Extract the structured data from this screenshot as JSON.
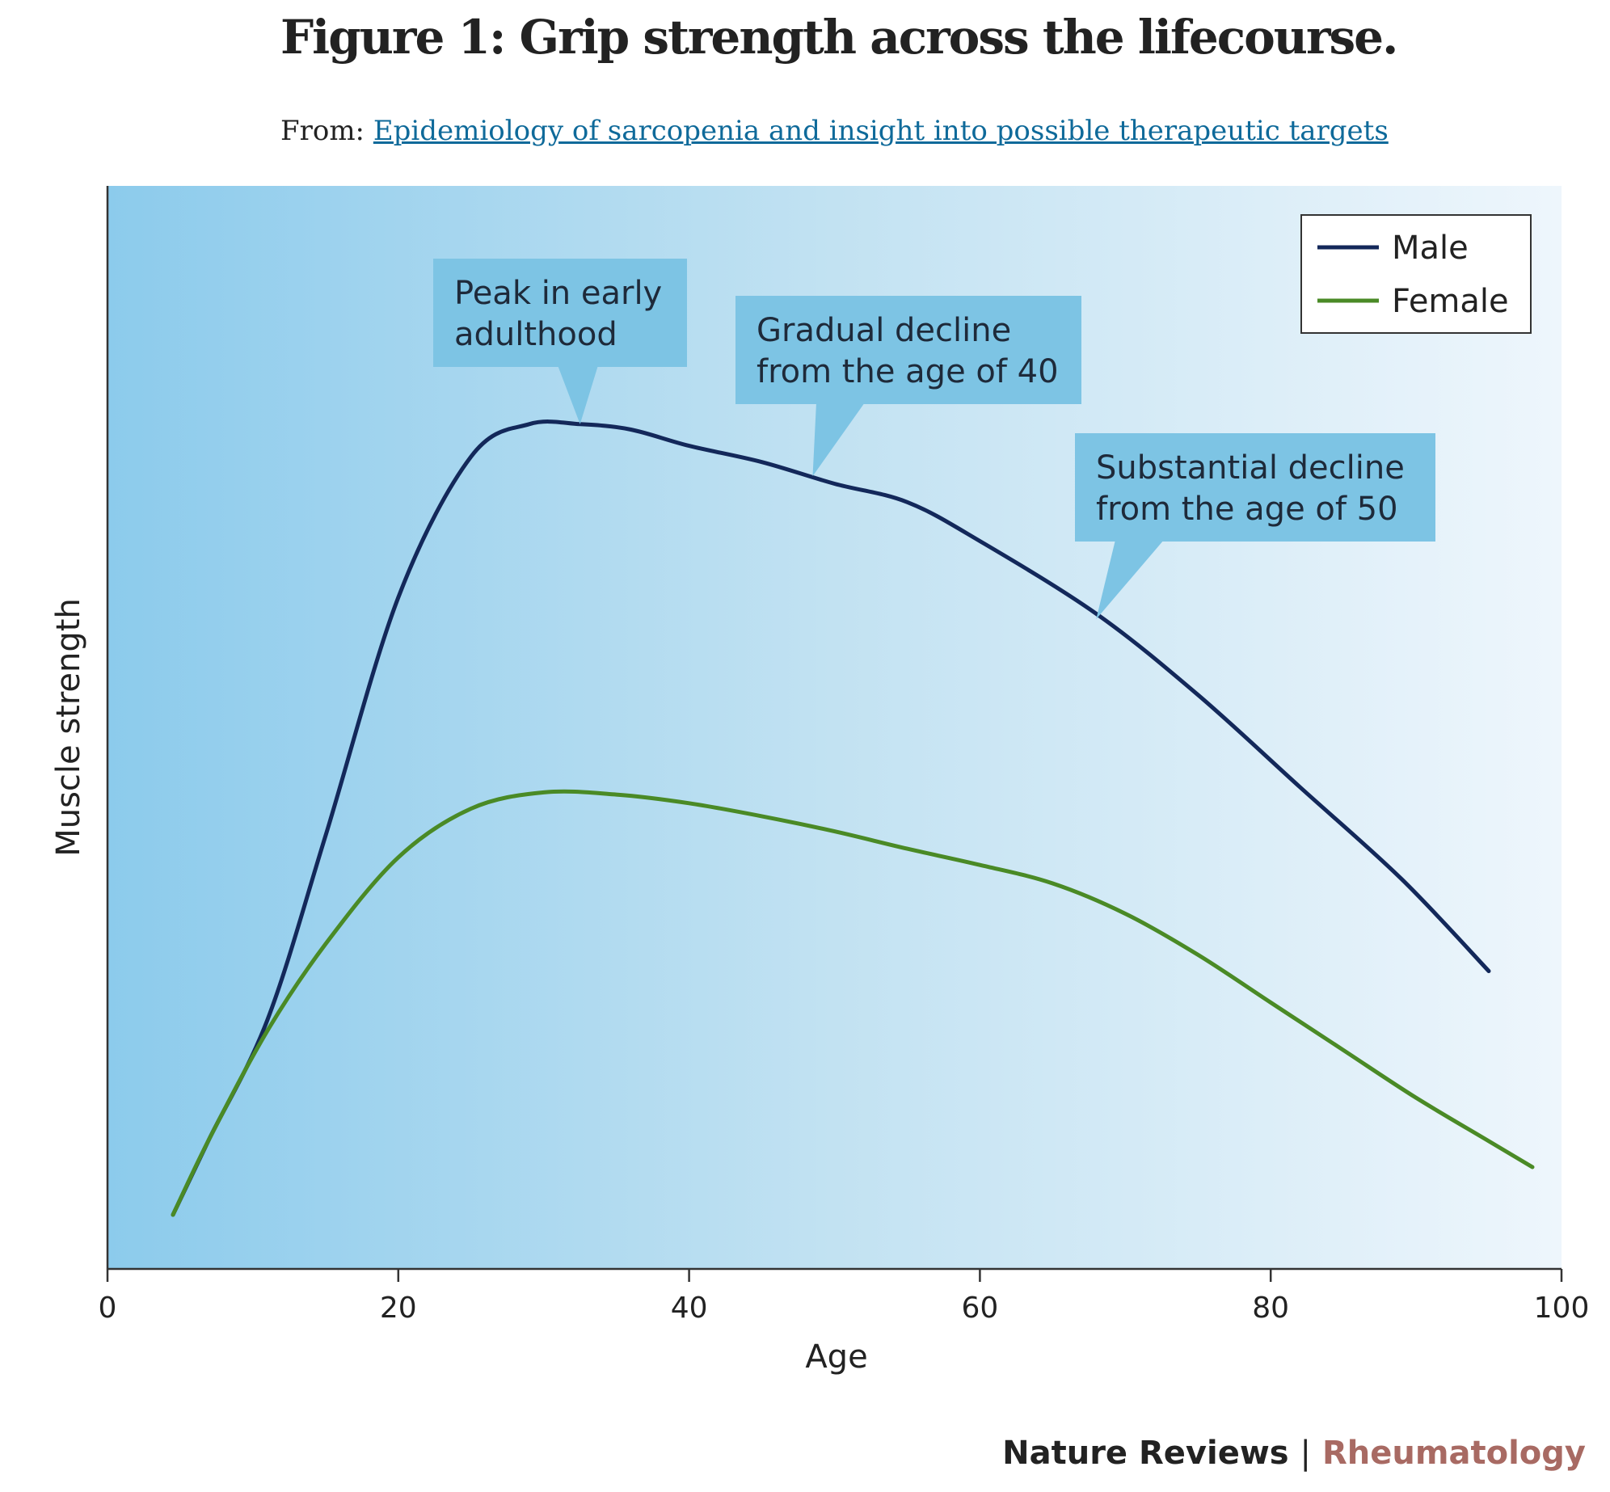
{
  "header": {
    "title": "Figure 1: Grip strength across the lifecourse.",
    "from_label": "From:",
    "from_link": "Epidemiology of sarcopenia and insight into possible therapeutic targets"
  },
  "credit": {
    "journal": "Nature Reviews",
    "separator": "|",
    "section": "Rheumatology"
  },
  "colors": {
    "male": "#13285a",
    "female": "#4a8a26",
    "callout": "#7dc4e4",
    "background_left": "#8ccbec",
    "background_mid": "#c2e2f2",
    "background_right": "#eef6fc",
    "credit_accent": "#a86a63"
  },
  "chart_data": {
    "type": "line",
    "xlabel": "Age",
    "ylabel": "Muscle strength",
    "xlim": [
      0,
      100
    ],
    "ylim": [
      0,
      100
    ],
    "xticks": [
      0,
      20,
      40,
      60,
      80,
      100
    ],
    "y_tick_labels_shown": false,
    "grid": false,
    "legend_position": "top-right",
    "series": [
      {
        "name": "Male",
        "x": [
          4.5,
          7,
          11,
          15,
          20,
          25,
          29,
          32.5,
          36,
          40,
          45,
          50,
          55,
          60,
          68,
          75,
          82,
          89,
          95
        ],
        "y": [
          5,
          12,
          23,
          40,
          62,
          75,
          78,
          78,
          77.5,
          76,
          74.5,
          72.5,
          70.8,
          67.2,
          60.5,
          53,
          44.5,
          36,
          27.5
        ]
      },
      {
        "name": "Female",
        "x": [
          4.5,
          7,
          11,
          15,
          20,
          25,
          30,
          35,
          40,
          45,
          50,
          55,
          60,
          65,
          70,
          75,
          80,
          85,
          90,
          95,
          98
        ],
        "y": [
          5,
          12,
          22,
          30,
          38,
          42.5,
          44,
          43.8,
          43,
          41.8,
          40.4,
          38.8,
          37.3,
          35.6,
          32.8,
          29,
          24.6,
          20.2,
          15.8,
          11.8,
          9.4
        ]
      }
    ],
    "annotations": [
      {
        "text": [
          "Peak in early",
          "adulthood"
        ],
        "target": [
          32.5,
          78
        ]
      },
      {
        "text": [
          "Gradual decline",
          "from the age of 40"
        ],
        "target": [
          48.5,
          73.2
        ]
      },
      {
        "text": [
          "Substantial decline",
          "from the age of 50"
        ],
        "target": [
          68,
          60
        ]
      }
    ]
  }
}
